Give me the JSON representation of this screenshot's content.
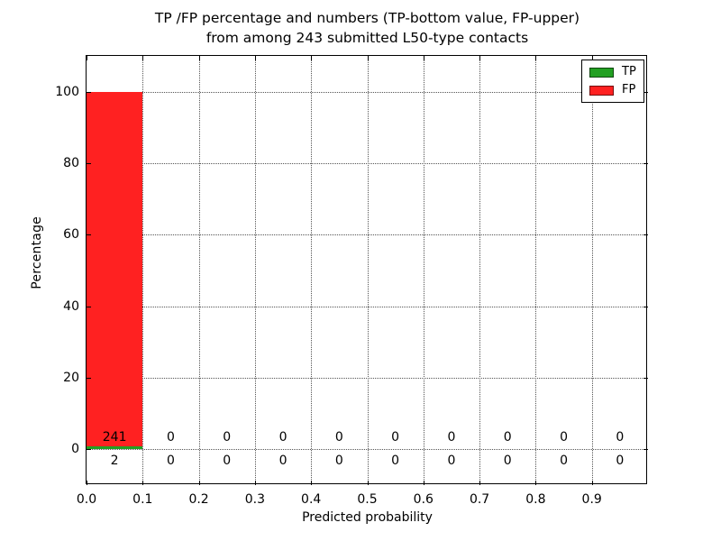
{
  "chart_data": {
    "type": "bar",
    "stacked": true,
    "title_line1": "TP /FP percentage and numbers (TP-bottom value, FP-upper)",
    "title_line2": "from among 243 submitted L50-type contacts",
    "xlabel": "Predicted probability",
    "ylabel": "Percentage",
    "total_contacts": 243,
    "xlim": [
      0.0,
      1.0
    ],
    "ylim": [
      -10,
      110
    ],
    "grid": true,
    "bins": {
      "start": 0.0,
      "width": 0.1,
      "count": 10
    },
    "xticks": {
      "values": [
        0.0,
        0.1,
        0.2,
        0.3,
        0.4,
        0.5,
        0.6,
        0.7,
        0.8,
        0.9
      ],
      "labels": [
        "0.0",
        "0.1",
        "0.2",
        "0.3",
        "0.4",
        "0.5",
        "0.6",
        "0.7",
        "0.8",
        "0.9"
      ]
    },
    "yticks": {
      "values": [
        0,
        20,
        40,
        60,
        80,
        100
      ],
      "labels": [
        "0",
        "20",
        "40",
        "60",
        "80",
        "100"
      ]
    },
    "series": [
      {
        "name": "TP",
        "color": "#22a022",
        "counts": [
          2,
          0,
          0,
          0,
          0,
          0,
          0,
          0,
          0,
          0
        ],
        "percent": [
          0.823,
          0,
          0,
          0,
          0,
          0,
          0,
          0,
          0,
          0
        ],
        "count_label_row": "below-zero"
      },
      {
        "name": "FP",
        "color": "#ff2121",
        "counts": [
          241,
          0,
          0,
          0,
          0,
          0,
          0,
          0,
          0,
          0
        ],
        "percent": [
          99.177,
          0,
          0,
          0,
          0,
          0,
          0,
          0,
          0,
          0
        ],
        "count_label_row": "above-zero"
      }
    ],
    "legend": {
      "position": "upper right",
      "entries": [
        {
          "label": "TP",
          "color": "#22a022"
        },
        {
          "label": "FP",
          "color": "#ff2121"
        }
      ]
    }
  }
}
